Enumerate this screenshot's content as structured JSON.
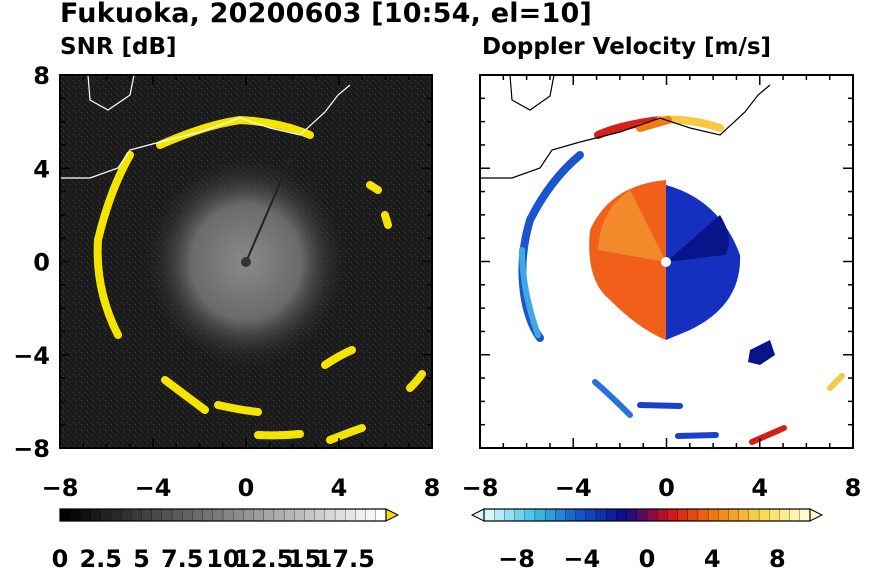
{
  "title": "Fukuoka, 20200603 [10:54, el=10]",
  "panels": {
    "left": {
      "subtitle": "SNR [dB]"
    },
    "right": {
      "subtitle": "Doppler Velocity [m/s]"
    }
  },
  "axes": {
    "range": [
      -8,
      8
    ],
    "y_tick_labels": [
      "8",
      "4",
      "0",
      "−4",
      "−8"
    ],
    "x_tick_labels": [
      "−8",
      "−4",
      "0",
      "4",
      "8"
    ]
  },
  "colorbars": {
    "snr": {
      "tick_labels": [
        "0",
        "2.5",
        "5",
        "7.5",
        "10",
        "12.5",
        "15",
        "17.5"
      ],
      "range": [
        0,
        20
      ],
      "colors": [
        "#000000",
        "#ffffff",
        "#f0e000"
      ]
    },
    "velocity": {
      "tick_labels": [
        "−8",
        "−4",
        "0",
        "4",
        "8"
      ],
      "range": [
        -10,
        10
      ],
      "colors": [
        "#d8f6fb",
        "#3ec3e8",
        "#1455c8",
        "#0a0a8a",
        "#d4101a",
        "#f07a14",
        "#f6d84a",
        "#fffbcc"
      ]
    }
  },
  "chart_data": [
    {
      "type": "heatmap",
      "title": "SNR [dB]",
      "xlim": [
        -8,
        8
      ],
      "ylim": [
        -8,
        8
      ],
      "colorbar_range": [
        0,
        20
      ],
      "features": [
        {
          "name": "ring",
          "center": [
            0,
            0
          ],
          "radius_km": 6.2,
          "snr": 20
        },
        {
          "name": "near-field",
          "center": [
            0,
            0
          ],
          "radius_km": 4.0,
          "snr": 8
        }
      ]
    },
    {
      "type": "heatmap",
      "title": "Doppler Velocity [m/s]",
      "xlim": [
        -8,
        8
      ],
      "ylim": [
        -8,
        8
      ],
      "colorbar_range": [
        -10,
        10
      ],
      "features": [
        {
          "name": "near-field-west",
          "velocity": 4
        },
        {
          "name": "near-field-east",
          "velocity": -6
        },
        {
          "name": "ring-west",
          "velocity": -6
        },
        {
          "name": "ring-north",
          "velocity": 5
        }
      ]
    }
  ]
}
